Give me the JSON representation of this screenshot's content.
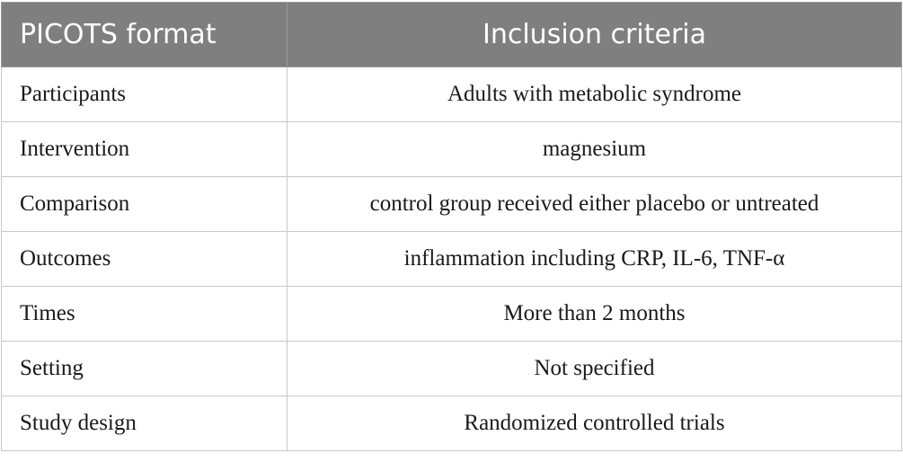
{
  "table": {
    "header": [
      "PICOTS format",
      "Inclusion criteria"
    ],
    "rows": [
      [
        "Participants",
        "Adults with metabolic syndrome"
      ],
      [
        "Intervention",
        "magnesium"
      ],
      [
        "Comparison",
        "control group received either placebo or untreated"
      ],
      [
        "Outcomes",
        "inflammation including CRP, IL-6, TNF-α"
      ],
      [
        "Times",
        "More than 2 months"
      ],
      [
        "Setting",
        "Not specified"
      ],
      [
        "Study design",
        "Randomized controlled trials"
      ]
    ]
  }
}
